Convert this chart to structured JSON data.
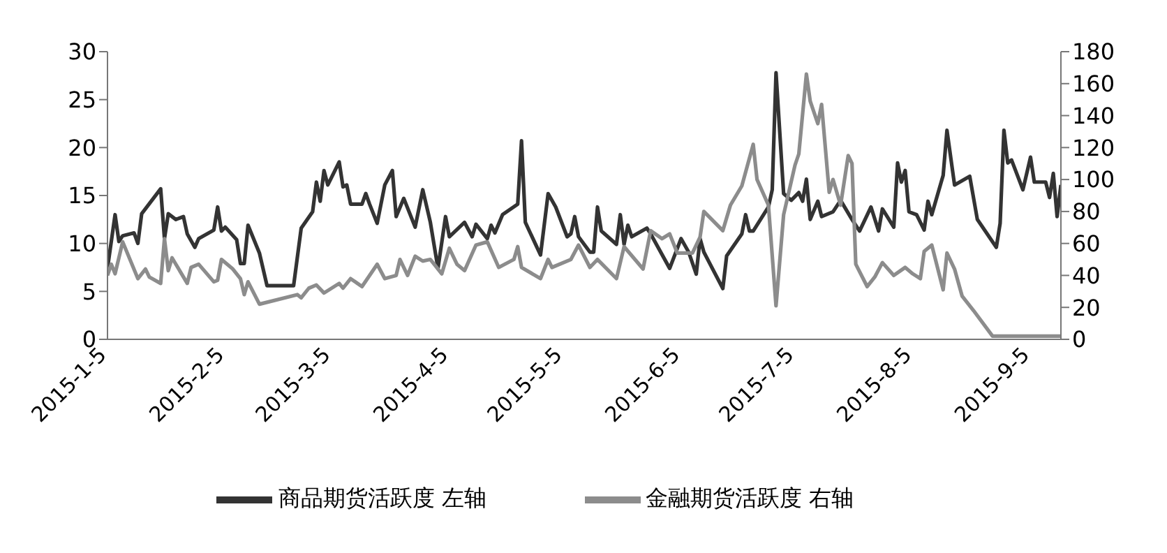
{
  "chart_data": {
    "type": "line",
    "xlim": [
      "2015-01-05",
      "2015-09-13"
    ],
    "xticks": [
      {
        "value": "2015-01-05",
        "label": "2015-1-5"
      },
      {
        "value": "2015-02-05",
        "label": "2015-2-5"
      },
      {
        "value": "2015-03-05",
        "label": "2015-3-5"
      },
      {
        "value": "2015-04-05",
        "label": "2015-4-5"
      },
      {
        "value": "2015-05-05",
        "label": "2015-5-5"
      },
      {
        "value": "2015-06-05",
        "label": "2015-6-5"
      },
      {
        "value": "2015-07-05",
        "label": "2015-7-5"
      },
      {
        "value": "2015-08-05",
        "label": "2015-8-5"
      },
      {
        "value": "2015-09-05",
        "label": "2015-9-5"
      }
    ],
    "ylim": [
      0,
      30
    ],
    "yticks": [
      0,
      5,
      10,
      15,
      20,
      25,
      30
    ],
    "y2lim": [
      0,
      180
    ],
    "y2ticks": [
      0,
      20,
      40,
      60,
      80,
      100,
      120,
      140,
      160,
      180
    ],
    "grid": false,
    "legend": "bottom",
    "marker": "none",
    "line_style": "solid",
    "series": [
      {
        "name": "商品期货活跃度 左轴",
        "color": "#333333",
        "x": [
          "2015-01-05",
          "2015-01-07",
          "2015-01-08",
          "2015-01-09",
          "2015-01-12",
          "2015-01-13",
          "2015-01-14",
          "2015-01-19",
          "2015-01-20",
          "2015-01-21",
          "2015-01-23",
          "2015-01-25",
          "2015-01-26",
          "2015-01-28",
          "2015-01-29",
          "2015-02-02",
          "2015-02-03",
          "2015-02-04",
          "2015-02-05",
          "2015-02-08",
          "2015-02-09",
          "2015-02-10",
          "2015-02-11",
          "2015-02-14",
          "2015-02-16",
          "2015-02-23",
          "2015-02-25",
          "2015-02-28",
          "2015-03-01",
          "2015-03-02",
          "2015-03-03",
          "2015-03-04",
          "2015-03-07",
          "2015-03-08",
          "2015-03-09",
          "2015-03-10",
          "2015-03-13",
          "2015-03-14",
          "2015-03-15",
          "2015-03-17",
          "2015-03-19",
          "2015-03-21",
          "2015-03-22",
          "2015-03-24",
          "2015-03-27",
          "2015-03-29",
          "2015-03-31",
          "2015-04-02",
          "2015-04-04",
          "2015-04-05",
          "2015-04-09",
          "2015-04-11",
          "2015-04-12",
          "2015-04-15",
          "2015-04-16",
          "2015-04-17",
          "2015-04-19",
          "2015-04-23",
          "2015-04-24",
          "2015-04-25",
          "2015-04-29",
          "2015-05-01",
          "2015-05-03",
          "2015-05-06",
          "2015-05-07",
          "2015-05-08",
          "2015-05-09",
          "2015-05-12",
          "2015-05-13",
          "2015-05-14",
          "2015-05-15",
          "2015-05-19",
          "2015-05-20",
          "2015-05-21",
          "2015-05-22",
          "2015-05-23",
          "2015-05-27",
          "2015-05-28",
          "2015-06-02",
          "2015-06-05",
          "2015-06-07",
          "2015-06-09",
          "2015-06-10",
          "2015-06-11",
          "2015-06-16",
          "2015-06-17",
          "2015-06-21",
          "2015-06-22",
          "2015-06-23",
          "2015-06-24",
          "2015-06-28",
          "2015-06-29",
          "2015-06-30",
          "2015-07-02",
          "2015-07-04",
          "2015-07-06",
          "2015-07-07",
          "2015-07-08",
          "2015-07-09",
          "2015-07-11",
          "2015-07-12",
          "2015-07-15",
          "2015-07-17",
          "2015-07-20",
          "2015-07-22",
          "2015-07-25",
          "2015-07-27",
          "2015-07-28",
          "2015-07-31",
          "2015-08-01",
          "2015-08-02",
          "2015-08-03",
          "2015-08-04",
          "2015-08-06",
          "2015-08-08",
          "2015-08-09",
          "2015-08-10",
          "2015-08-13",
          "2015-08-14",
          "2015-08-16",
          "2015-08-20",
          "2015-08-22",
          "2015-08-27",
          "2015-08-28",
          "2015-08-29",
          "2015-08-30",
          "2015-08-31",
          "2015-09-03",
          "2015-09-05",
          "2015-09-06",
          "2015-09-09",
          "2015-09-10",
          "2015-09-11",
          "2015-09-12",
          "2015-09-13"
        ],
        "values": [
          7.4,
          13.0,
          10.2,
          10.8,
          11.1,
          10.0,
          13.1,
          15.7,
          10.5,
          13.1,
          12.5,
          12.8,
          11.0,
          9.6,
          10.5,
          11.4,
          13.8,
          11.3,
          11.7,
          10.4,
          7.9,
          7.9,
          11.9,
          9.0,
          5.6,
          5.6,
          11.6,
          13.3,
          16.4,
          14.4,
          17.6,
          16.1,
          18.5,
          15.9,
          16.1,
          14.1,
          14.1,
          15.2,
          14.1,
          12.1,
          16.1,
          17.6,
          12.8,
          14.7,
          11.7,
          15.6,
          12.2,
          7.4,
          12.8,
          10.7,
          12.2,
          10.7,
          12.0,
          10.5,
          11.9,
          11.1,
          13.0,
          14.1,
          20.7,
          12.2,
          8.8,
          15.2,
          13.8,
          10.7,
          11.0,
          12.8,
          10.7,
          9.1,
          9.1,
          13.8,
          11.3,
          9.9,
          13.0,
          9.9,
          11.9,
          10.7,
          11.6,
          11.0,
          7.4,
          10.5,
          9.1,
          6.8,
          10.5,
          9.1,
          5.3,
          8.7,
          11.0,
          13.0,
          11.3,
          11.3,
          13.8,
          15.6,
          27.8,
          15.2,
          14.5,
          15.3,
          14.4,
          16.7,
          12.5,
          14.4,
          12.8,
          13.3,
          14.5,
          12.5,
          11.3,
          13.8,
          11.3,
          13.6,
          11.7,
          18.4,
          16.4,
          17.6,
          13.3,
          13.0,
          11.4,
          14.4,
          13.0,
          17.1,
          21.8,
          16.1,
          17.0,
          12.5,
          9.6,
          12.1,
          21.8,
          18.4,
          18.7,
          15.6,
          19.0,
          16.4,
          16.4,
          14.8,
          17.3,
          12.8,
          16.1
        ]
      },
      {
        "name": "金融期货活跃度 右轴",
        "color": "#8c8c8c",
        "axis": "y2",
        "x": [
          "2015-01-05",
          "2015-01-06",
          "2015-01-07",
          "2015-01-09",
          "2015-01-13",
          "2015-01-15",
          "2015-01-16",
          "2015-01-19",
          "2015-01-20",
          "2015-01-21",
          "2015-01-22",
          "2015-01-26",
          "2015-01-27",
          "2015-01-29",
          "2015-02-02",
          "2015-02-03",
          "2015-02-04",
          "2015-02-07",
          "2015-02-09",
          "2015-02-10",
          "2015-02-11",
          "2015-02-14",
          "2015-02-24",
          "2015-02-25",
          "2015-02-27",
          "2015-03-01",
          "2015-03-03",
          "2015-03-07",
          "2015-03-08",
          "2015-03-10",
          "2015-03-13",
          "2015-03-15",
          "2015-03-17",
          "2015-03-19",
          "2015-03-22",
          "2015-03-23",
          "2015-03-25",
          "2015-03-27",
          "2015-03-29",
          "2015-03-31",
          "2015-04-01",
          "2015-04-03",
          "2015-04-05",
          "2015-04-07",
          "2015-04-09",
          "2015-04-12",
          "2015-04-15",
          "2015-04-18",
          "2015-04-22",
          "2015-04-23",
          "2015-04-24",
          "2015-04-29",
          "2015-05-01",
          "2015-05-02",
          "2015-05-07",
          "2015-05-09",
          "2015-05-12",
          "2015-05-14",
          "2015-05-19",
          "2015-05-21",
          "2015-05-26",
          "2015-05-28",
          "2015-05-31",
          "2015-06-02",
          "2015-06-04",
          "2015-06-08",
          "2015-06-10",
          "2015-06-11",
          "2015-06-16",
          "2015-06-18",
          "2015-06-21",
          "2015-06-24",
          "2015-06-25",
          "2015-06-28",
          "2015-06-30",
          "2015-07-02",
          "2015-07-05",
          "2015-07-06",
          "2015-07-08",
          "2015-07-09",
          "2015-07-11",
          "2015-07-12",
          "2015-07-14",
          "2015-07-15",
          "2015-07-17",
          "2015-07-19",
          "2015-07-20",
          "2015-07-21",
          "2015-07-24",
          "2015-07-26",
          "2015-07-28",
          "2015-07-31",
          "2015-08-03",
          "2015-08-05",
          "2015-08-07",
          "2015-08-08",
          "2015-08-10",
          "2015-08-13",
          "2015-08-14",
          "2015-08-16",
          "2015-08-18",
          "2015-08-21",
          "2015-08-26",
          "2015-09-05",
          "2015-09-13"
        ],
        "values": [
          40,
          47,
          41,
          61,
          38,
          44,
          39,
          35,
          63,
          43,
          51,
          35,
          45,
          47,
          36,
          37,
          50,
          44,
          38,
          28,
          36,
          22,
          28,
          26,
          32,
          34,
          29,
          35,
          32,
          38,
          33,
          40,
          47,
          38,
          40,
          50,
          40,
          52,
          49,
          50,
          47,
          41,
          57,
          47,
          43,
          59,
          61,
          45,
          50,
          58,
          45,
          38,
          50,
          45,
          50,
          59,
          45,
          50,
          38,
          58,
          44,
          68,
          63,
          66,
          54,
          54,
          64,
          80,
          68,
          84,
          96,
          122,
          100,
          84,
          21,
          78,
          109,
          116,
          166,
          149,
          135,
          147,
          92,
          100,
          84,
          115,
          110,
          47,
          33,
          39,
          48,
          40,
          45,
          41,
          38,
          55,
          59,
          31,
          54,
          44,
          27,
          18,
          2,
          2,
          2
        ]
      }
    ]
  }
}
